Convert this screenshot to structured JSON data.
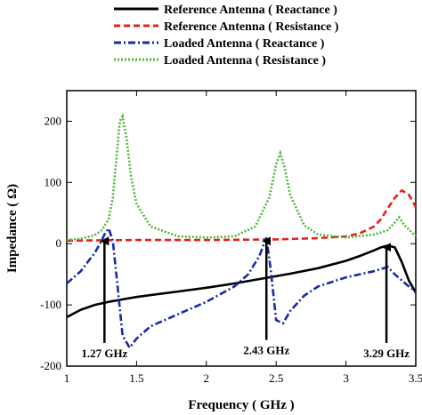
{
  "chart_data": {
    "type": "line",
    "xlabel": "Frequency ( GHz )",
    "ylabel": "Impedance ( Ω)",
    "xlim": [
      1,
      3.5
    ],
    "ylim": [
      -200,
      250
    ],
    "xticks": [
      "1",
      "1.5",
      "2",
      "2.5",
      "3",
      "3.5"
    ],
    "yticks": [
      "200",
      "100",
      "0",
      "-100",
      "-200"
    ],
    "grid": false,
    "legend_position": "top-right, above plot",
    "series": [
      {
        "name": "Reference Antenna ( Reactance )",
        "color": "#000000",
        "style": "solid",
        "x": [
          1.0,
          1.1,
          1.2,
          1.3,
          1.4,
          1.5,
          1.6,
          1.8,
          2.0,
          2.2,
          2.4,
          2.6,
          2.8,
          3.0,
          3.1,
          3.2,
          3.25,
          3.3,
          3.35,
          3.4,
          3.45,
          3.5
        ],
        "y": [
          -120,
          -108,
          -100,
          -95,
          -91,
          -87,
          -84,
          -78,
          -72,
          -65,
          -57,
          -49,
          -40,
          -28,
          -20,
          -11,
          -6,
          -3,
          -6,
          -30,
          -60,
          -80
        ]
      },
      {
        "name": "Reference Antenna ( Resistance )",
        "color": "#e8201a",
        "style": "dashed",
        "x": [
          1.0,
          1.5,
          2.0,
          2.5,
          2.8,
          3.0,
          3.1,
          3.2,
          3.25,
          3.3,
          3.35,
          3.4,
          3.45,
          3.5
        ],
        "y": [
          5,
          6,
          6,
          7,
          9,
          12,
          17,
          28,
          40,
          58,
          75,
          87,
          80,
          60
        ]
      },
      {
        "name": "Loaded Antenna ( Reactance )",
        "color": "#1a2aa8",
        "style": "dashdot",
        "x": [
          1.0,
          1.05,
          1.1,
          1.15,
          1.2,
          1.25,
          1.27,
          1.3,
          1.33,
          1.36,
          1.4,
          1.45,
          1.5,
          1.6,
          1.8,
          2.0,
          2.2,
          2.3,
          2.38,
          2.43,
          2.46,
          2.5,
          2.55,
          2.6,
          2.7,
          2.8,
          3.0,
          3.2,
          3.3,
          3.35,
          3.4,
          3.45,
          3.5
        ],
        "y": [
          -65,
          -55,
          -45,
          -30,
          -15,
          5,
          15,
          25,
          5,
          -60,
          -150,
          -170,
          -155,
          -135,
          -115,
          -95,
          -70,
          -50,
          -20,
          10,
          -40,
          -125,
          -130,
          -110,
          -85,
          -70,
          -55,
          -45,
          -38,
          -50,
          -60,
          -70,
          -78
        ]
      },
      {
        "name": "Loaded Antenna ( Resistance )",
        "color": "#4fb83a",
        "style": "dotted",
        "x": [
          1.0,
          1.1,
          1.2,
          1.25,
          1.3,
          1.33,
          1.36,
          1.38,
          1.4,
          1.43,
          1.46,
          1.5,
          1.6,
          1.8,
          2.0,
          2.2,
          2.35,
          2.45,
          2.5,
          2.53,
          2.56,
          2.6,
          2.7,
          2.8,
          3.0,
          3.2,
          3.3,
          3.35,
          3.38,
          3.42,
          3.5
        ],
        "y": [
          6,
          8,
          14,
          22,
          40,
          75,
          150,
          200,
          208,
          170,
          110,
          65,
          28,
          12,
          10,
          12,
          28,
          75,
          130,
          148,
          125,
          80,
          30,
          15,
          10,
          15,
          22,
          35,
          43,
          30,
          12
        ]
      }
    ],
    "annotations": [
      {
        "text": "1.27 GHz",
        "x": 1.27,
        "y": 10,
        "label_x": 1.27,
        "label_y": -165
      },
      {
        "text": "2.43 GHz",
        "x": 2.43,
        "y": 10,
        "label_x": 2.43,
        "label_y": -160
      },
      {
        "text": "3.29 GHz",
        "x": 3.29,
        "y": 0,
        "label_x": 3.29,
        "label_y": -165
      }
    ]
  }
}
